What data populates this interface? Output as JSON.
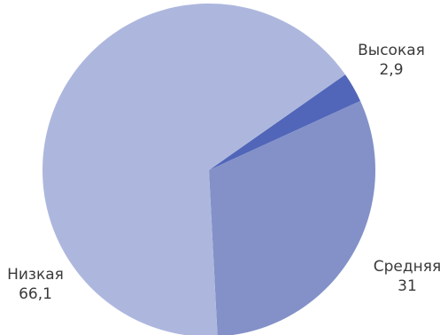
{
  "chart_data": {
    "type": "pie",
    "title": "",
    "start_angle_deg": 55,
    "direction": "clockwise",
    "slices": [
      {
        "label": "Высокая",
        "value": 2.9,
        "value_text": "2,9",
        "color": "#5166b9"
      },
      {
        "label": "Средняя",
        "value": 31,
        "value_text": "31",
        "color": "#8391c8"
      },
      {
        "label": "Низкая",
        "value": 66.1,
        "value_text": "66,1",
        "color": "#adb7de"
      }
    ]
  }
}
